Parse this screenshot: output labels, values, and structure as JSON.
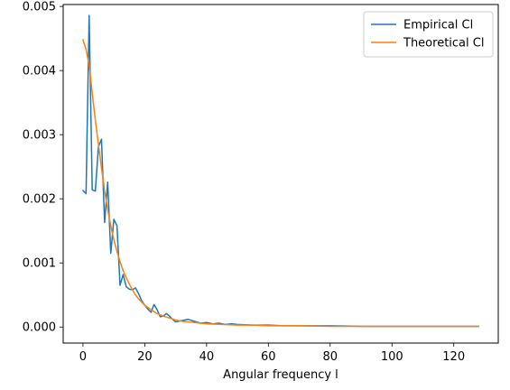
{
  "chart_data": {
    "type": "line",
    "title": "",
    "xlabel": "Angular frequency l",
    "ylabel": "",
    "xlim": [
      -6.4,
      134.4
    ],
    "ylim": [
      -0.00025,
      0.00503
    ],
    "xticks": [
      0,
      20,
      40,
      60,
      80,
      100,
      120
    ],
    "xtick_labels": [
      "0",
      "20",
      "40",
      "60",
      "80",
      "100",
      "120"
    ],
    "yticks": [
      0.0,
      0.001,
      0.002,
      0.003,
      0.004,
      0.005
    ],
    "ytick_labels": [
      "0.000",
      "0.001",
      "0.002",
      "0.003",
      "0.004",
      "0.005"
    ],
    "grid": false,
    "legend_position": "top-right",
    "series": [
      {
        "name": "Empirical Cl",
        "color": "#1f77b4",
        "x": [
          0,
          1,
          2,
          3,
          4,
          5,
          6,
          7,
          8,
          9,
          10,
          11,
          12,
          13,
          14,
          15,
          16,
          17,
          18,
          19,
          20,
          21,
          22,
          23,
          24,
          25,
          26,
          27,
          28,
          29,
          30,
          32,
          34,
          36,
          38,
          40,
          42,
          44,
          46,
          48,
          50,
          55,
          60,
          65,
          70,
          80,
          90,
          100,
          110,
          120,
          128
        ],
        "y": [
          0.00213,
          0.00208,
          0.00486,
          0.00214,
          0.00212,
          0.00281,
          0.00293,
          0.00163,
          0.00226,
          0.00115,
          0.00168,
          0.00158,
          0.00065,
          0.00082,
          0.00063,
          0.00059,
          0.00058,
          0.00061,
          0.00052,
          0.00041,
          0.00034,
          0.00028,
          0.00023,
          0.00035,
          0.00027,
          0.00016,
          0.00017,
          0.00021,
          0.00017,
          0.00012,
          8e-05,
          0.0001,
          0.00012,
          9e-05,
          6e-05,
          7e-05,
          5e-05,
          6e-05,
          4e-05,
          5e-05,
          4e-05,
          3e-05,
          3e-05,
          2e-05,
          2e-05,
          2e-05,
          1e-05,
          1e-05,
          1e-05,
          1e-05,
          1e-05
        ]
      },
      {
        "name": "Theoretical Cl",
        "color": "#ff7f0e",
        "x": [
          0,
          1,
          2,
          3,
          4,
          5,
          6,
          7,
          8,
          9,
          10,
          11,
          12,
          13,
          14,
          15,
          16,
          17,
          18,
          19,
          20,
          22,
          24,
          26,
          28,
          30,
          32,
          34,
          36,
          38,
          40,
          45,
          50,
          55,
          60,
          70,
          80,
          90,
          100,
          110,
          120,
          128
        ],
        "y": [
          0.00448,
          0.00433,
          0.00408,
          0.00365,
          0.00323,
          0.00285,
          0.00248,
          0.00213,
          0.00183,
          0.00158,
          0.00136,
          0.00118,
          0.00102,
          0.00088,
          0.00077,
          0.00067,
          0.00058,
          0.0005,
          0.00044,
          0.00039,
          0.00034,
          0.00027,
          0.00021,
          0.00017,
          0.00014,
          0.00011,
          9e-05,
          8e-05,
          7e-05,
          6e-05,
          5e-05,
          4e-05,
          3e-05,
          3e-05,
          2e-05,
          2e-05,
          1e-05,
          1e-05,
          1e-05,
          1e-05,
          1e-05,
          1e-05
        ]
      }
    ]
  }
}
